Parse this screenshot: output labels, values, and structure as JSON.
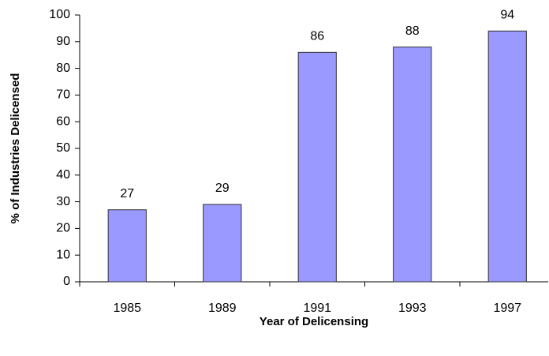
{
  "chart_data": {
    "type": "bar",
    "x_label": "Year of Delicensing",
    "y_label": "% of Industries Delicensed",
    "categories": [
      "1985",
      "1989",
      "1991",
      "1993",
      "1997"
    ],
    "values": [
      27,
      29,
      86,
      88,
      94
    ],
    "color": "#9999ff",
    "ylim": [
      0,
      100
    ],
    "yticks": [
      0,
      10,
      20,
      30,
      40,
      50,
      60,
      70,
      80,
      90,
      100
    ],
    "grid": false,
    "data_labels": true
  }
}
